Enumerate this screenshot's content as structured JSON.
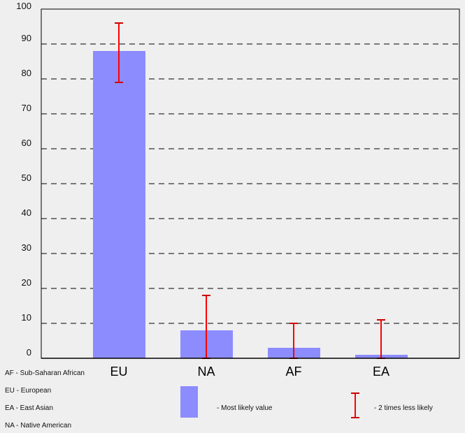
{
  "chart_data": {
    "type": "bar",
    "categories": [
      "EU",
      "NA",
      "AF",
      "EA"
    ],
    "values": [
      88,
      8,
      3,
      1
    ],
    "error_low": [
      79,
      0,
      0,
      0
    ],
    "error_high": [
      96,
      18,
      10,
      11
    ],
    "ylim": [
      0,
      100
    ],
    "yticks": [
      0,
      10,
      20,
      30,
      40,
      50,
      60,
      70,
      80,
      90,
      100
    ],
    "grid": true,
    "bar_color": "#8c8cff",
    "error_color": "#ff0000",
    "title": "",
    "xlabel": "",
    "ylabel": ""
  },
  "abbreviations": [
    "AF - Sub-Saharan African",
    "EU - European",
    "EA - East Asian",
    "NA - Native American"
  ],
  "legend": {
    "bar_label": "- Most likely value",
    "error_label": "- 2 times less likely"
  }
}
